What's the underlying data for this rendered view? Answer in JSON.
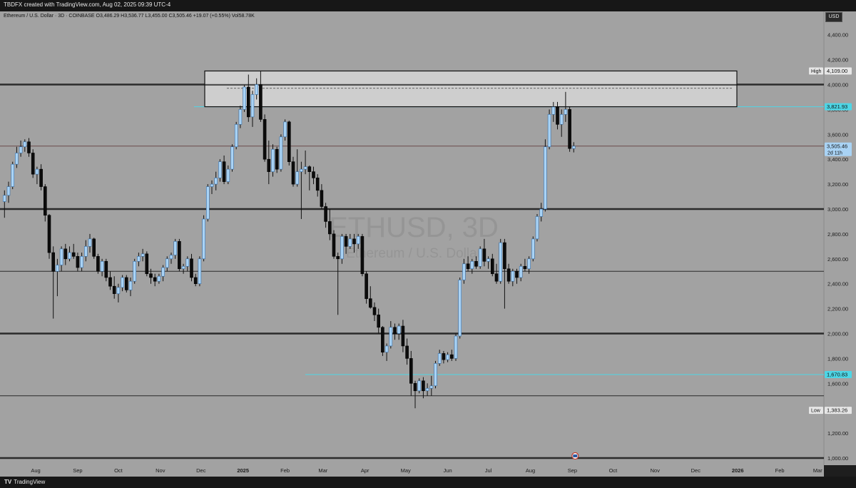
{
  "header": {
    "credit": "TBDFX created with TradingView.com, Aug 02, 2025 09:39 UTC-4",
    "symbol_info": "Ethereum / U.S. Dollar · 3D · COINBASE  O3,486.29  H3,536.77  L3,455.00  C3,505.46  +19.07 (+0.55%)  Vol58.78K",
    "currency_button": "USD"
  },
  "footer": {
    "brand": "TradingView"
  },
  "colors": {
    "background": "#a2a2a2",
    "up_candle": "#a9d3f5",
    "down_candle": "#0c0c0c",
    "cyan": "#4dd6e6",
    "level_line": "#2b2b2b",
    "zone_fill": "#dcdcdc"
  },
  "chart_data": {
    "type": "candlestick",
    "title": "ETHUSD, 3D",
    "watermark": "ETHUSD, 3D",
    "watermark_subtitle": "Ethereum / U.S. Dollar",
    "ylim": [
      1000,
      4500
    ],
    "y_ticks": [
      "4,400.00",
      "4,200.00",
      "4,000.00",
      "3,800.00",
      "3,600.00",
      "3,400.00",
      "3,200.00",
      "3,000.00",
      "2,800.00",
      "2,600.00",
      "2,400.00",
      "2,200.00",
      "2,000.00",
      "1,800.00",
      "1,600.00",
      "1,400.00",
      "1,200.00",
      "1,000.00"
    ],
    "x_ticks": [
      "Aug",
      "Sep",
      "Oct",
      "Nov",
      "Dec",
      "2025",
      "Feb",
      "Mar",
      "Apr",
      "May",
      "Jun",
      "Jul",
      "Aug",
      "Sep",
      "Oct",
      "Nov",
      "Dec",
      "2026",
      "Feb",
      "Mar"
    ],
    "levels": {
      "thick": [
        4000,
        3000,
        2000,
        1000
      ],
      "thin": [
        2500,
        1500
      ],
      "last_price_line": 3505.46
    },
    "zone": {
      "top": 4109,
      "bottom": 3821.93,
      "dashed": 3970
    },
    "price_labels": [
      {
        "name": "high",
        "tag": "High",
        "value": "4,109.00",
        "y": 4109
      },
      {
        "name": "resistance",
        "tag": "",
        "value": "3,821.93",
        "y": 3821.93
      },
      {
        "name": "last",
        "tag": "",
        "value": "3,505.46",
        "sub": "2d 11h",
        "y": 3505.46
      },
      {
        "name": "support",
        "tag": "",
        "value": "1,670.83",
        "y": 1670.83
      },
      {
        "name": "low",
        "tag": "Low",
        "value": "1,383.26",
        "y": 1383.26
      }
    ],
    "cyan_lines": [
      3821.93,
      1670.83
    ],
    "start_date": "2024-07-09",
    "period_days": 3,
    "candles": [
      [
        3060,
        3150,
        2930,
        3110
      ],
      [
        3110,
        3220,
        3050,
        3180
      ],
      [
        3180,
        3380,
        3160,
        3360
      ],
      [
        3360,
        3500,
        3330,
        3450
      ],
      [
        3450,
        3550,
        3420,
        3500
      ],
      [
        3500,
        3560,
        3460,
        3540
      ],
      [
        3540,
        3570,
        3420,
        3450
      ],
      [
        3450,
        3480,
        3250,
        3280
      ],
      [
        3280,
        3340,
        3200,
        3320
      ],
      [
        3320,
        3360,
        3150,
        3180
      ],
      [
        3180,
        3200,
        2900,
        2950
      ],
      [
        2950,
        2960,
        2600,
        2650
      ],
      [
        2650,
        2700,
        2120,
        2500
      ],
      [
        2500,
        2600,
        2300,
        2550
      ],
      [
        2550,
        2700,
        2500,
        2680
      ],
      [
        2680,
        2720,
        2550,
        2600
      ],
      [
        2600,
        2700,
        2580,
        2650
      ],
      [
        2650,
        2720,
        2600,
        2620
      ],
      [
        2620,
        2650,
        2500,
        2530
      ],
      [
        2530,
        2650,
        2500,
        2620
      ],
      [
        2620,
        2750,
        2580,
        2700
      ],
      [
        2700,
        2800,
        2650,
        2760
      ],
      [
        2760,
        2770,
        2600,
        2620
      ],
      [
        2620,
        2640,
        2480,
        2500
      ],
      [
        2500,
        2600,
        2460,
        2580
      ],
      [
        2580,
        2600,
        2420,
        2450
      ],
      [
        2450,
        2500,
        2350,
        2380
      ],
      [
        2380,
        2460,
        2280,
        2320
      ],
      [
        2320,
        2400,
        2250,
        2370
      ],
      [
        2370,
        2470,
        2340,
        2450
      ],
      [
        2450,
        2470,
        2330,
        2350
      ],
      [
        2350,
        2450,
        2300,
        2420
      ],
      [
        2420,
        2600,
        2400,
        2580
      ],
      [
        2580,
        2650,
        2540,
        2620
      ],
      [
        2620,
        2680,
        2580,
        2640
      ],
      [
        2640,
        2660,
        2460,
        2480
      ],
      [
        2480,
        2520,
        2400,
        2450
      ],
      [
        2450,
        2480,
        2380,
        2420
      ],
      [
        2420,
        2480,
        2400,
        2460
      ],
      [
        2460,
        2550,
        2420,
        2530
      ],
      [
        2530,
        2620,
        2500,
        2600
      ],
      [
        2600,
        2650,
        2560,
        2630
      ],
      [
        2630,
        2760,
        2600,
        2740
      ],
      [
        2740,
        2760,
        2500,
        2520
      ],
      [
        2520,
        2560,
        2480,
        2540
      ],
      [
        2540,
        2620,
        2500,
        2600
      ],
      [
        2600,
        2640,
        2420,
        2450
      ],
      [
        2450,
        2480,
        2380,
        2400
      ],
      [
        2400,
        2620,
        2380,
        2600
      ],
      [
        2600,
        2950,
        2580,
        2920
      ],
      [
        2920,
        3200,
        2900,
        3180
      ],
      [
        3180,
        3230,
        3120,
        3200
      ],
      [
        3200,
        3300,
        3150,
        3250
      ],
      [
        3250,
        3400,
        3220,
        3380
      ],
      [
        3380,
        3430,
        3200,
        3220
      ],
      [
        3220,
        3350,
        3200,
        3320
      ],
      [
        3320,
        3520,
        3300,
        3500
      ],
      [
        3500,
        3700,
        3480,
        3680
      ],
      [
        3680,
        3830,
        3650,
        3800
      ],
      [
        3800,
        4000,
        3780,
        3980
      ],
      [
        3980,
        4080,
        3700,
        3740
      ],
      [
        3740,
        3950,
        3660,
        3920
      ],
      [
        3920,
        4050,
        3880,
        4000
      ],
      [
        4000,
        4109,
        3700,
        3720
      ],
      [
        3720,
        3760,
        3380,
        3400
      ],
      [
        3400,
        3550,
        3200,
        3300
      ],
      [
        3300,
        3520,
        3260,
        3480
      ],
      [
        3480,
        3500,
        3290,
        3320
      ],
      [
        3320,
        3600,
        3300,
        3580
      ],
      [
        3580,
        3720,
        3550,
        3700
      ],
      [
        3700,
        3710,
        3350,
        3380
      ],
      [
        3380,
        3420,
        3180,
        3200
      ],
      [
        3200,
        3480,
        3180,
        3300
      ],
      [
        3300,
        3380,
        2920,
        3320
      ],
      [
        3320,
        3470,
        3280,
        3340
      ],
      [
        3340,
        3350,
        3150,
        3300
      ],
      [
        3300,
        3340,
        3200,
        3250
      ],
      [
        3250,
        3280,
        3100,
        3150
      ],
      [
        3150,
        3200,
        3000,
        3020
      ],
      [
        3020,
        3050,
        2850,
        2900
      ],
      [
        2900,
        3000,
        2750,
        2800
      ],
      [
        2800,
        2830,
        2600,
        2620
      ],
      [
        2620,
        2650,
        2150,
        2600
      ],
      [
        2600,
        2800,
        2560,
        2780
      ],
      [
        2780,
        2800,
        2640,
        2700
      ],
      [
        2700,
        2800,
        2680,
        2760
      ],
      [
        2760,
        2800,
        2650,
        2720
      ],
      [
        2720,
        2800,
        2680,
        2780
      ],
      [
        2780,
        2800,
        2460,
        2480
      ],
      [
        2480,
        2500,
        2240,
        2280
      ],
      [
        2280,
        2380,
        2200,
        2210
      ],
      [
        2210,
        2250,
        2100,
        2150
      ],
      [
        2150,
        2200,
        2000,
        2050
      ],
      [
        2050,
        2060,
        1820,
        1850
      ],
      [
        1850,
        1920,
        1780,
        1900
      ],
      [
        1900,
        2100,
        1880,
        2050
      ],
      [
        2050,
        2080,
        1950,
        2000
      ],
      [
        2000,
        2080,
        1950,
        2060
      ],
      [
        2060,
        2110,
        1850,
        1900
      ],
      [
        1900,
        1960,
        1750,
        1800
      ],
      [
        1800,
        1860,
        1500,
        1600
      ],
      [
        1600,
        1620,
        1400,
        1540
      ],
      [
        1540,
        1640,
        1520,
        1620
      ],
      [
        1620,
        1650,
        1480,
        1540
      ],
      [
        1540,
        1600,
        1500,
        1560
      ],
      [
        1560,
        1660,
        1500,
        1580
      ],
      [
        1580,
        1780,
        1560,
        1760
      ],
      [
        1760,
        1870,
        1740,
        1840
      ],
      [
        1840,
        1860,
        1760,
        1790
      ],
      [
        1790,
        1850,
        1770,
        1830
      ],
      [
        1830,
        1870,
        1780,
        1800
      ],
      [
        1800,
        2000,
        1780,
        1980
      ],
      [
        1980,
        2450,
        1960,
        2430
      ],
      [
        2430,
        2600,
        2400,
        2560
      ],
      [
        2560,
        2620,
        2500,
        2520
      ],
      [
        2520,
        2600,
        2480,
        2580
      ],
      [
        2580,
        2620,
        2520,
        2540
      ],
      [
        2540,
        2700,
        2520,
        2680
      ],
      [
        2680,
        2760,
        2540,
        2580
      ],
      [
        2580,
        2620,
        2520,
        2600
      ],
      [
        2600,
        2640,
        2460,
        2480
      ],
      [
        2480,
        2560,
        2400,
        2420
      ],
      [
        2420,
        2760,
        2400,
        2730
      ],
      [
        2730,
        2760,
        2200,
        2520
      ],
      [
        2520,
        2560,
        2400,
        2420
      ],
      [
        2420,
        2520,
        2380,
        2500
      ],
      [
        2500,
        2520,
        2400,
        2450
      ],
      [
        2450,
        2560,
        2420,
        2540
      ],
      [
        2540,
        2600,
        2500,
        2520
      ],
      [
        2520,
        2620,
        2480,
        2600
      ],
      [
        2600,
        2780,
        2580,
        2760
      ],
      [
        2760,
        2960,
        2740,
        2940
      ],
      [
        2940,
        3050,
        2900,
        3000
      ],
      [
        3000,
        3560,
        2980,
        3500
      ],
      [
        3500,
        3800,
        3480,
        3760
      ],
      [
        3760,
        3860,
        3700,
        3820
      ],
      [
        3820,
        3860,
        3640,
        3680
      ],
      [
        3680,
        3800,
        3580,
        3760
      ],
      [
        3760,
        3941,
        3700,
        3800
      ],
      [
        3800,
        3820,
        3460,
        3486
      ],
      [
        3486,
        3537,
        3455,
        3505
      ]
    ]
  }
}
